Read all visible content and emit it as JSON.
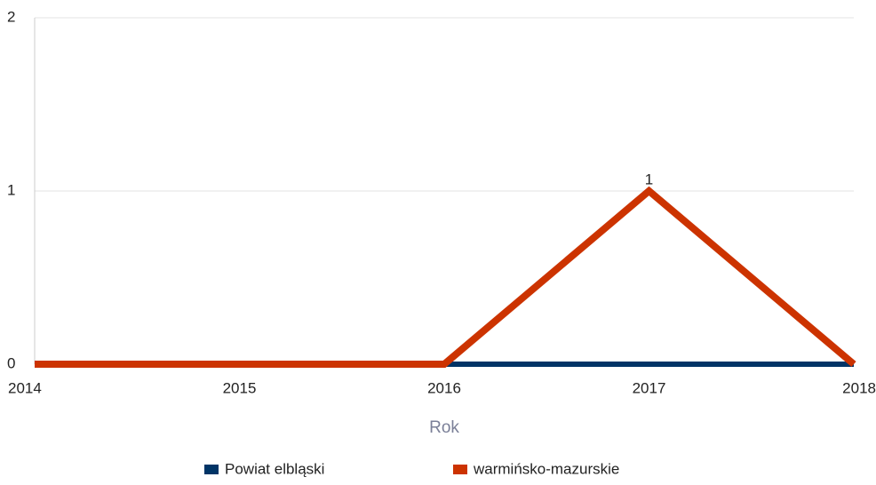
{
  "chart_data": {
    "type": "line",
    "x": [
      2014,
      2015,
      2016,
      2017,
      2018
    ],
    "xlim": [
      2014,
      2018
    ],
    "xticks": [
      2014,
      2015,
      2016,
      2017,
      2018
    ],
    "ylim": [
      0,
      2
    ],
    "yticks": [
      0,
      1,
      2
    ],
    "x_label": "Rok",
    "grid": true,
    "legend": "bottom",
    "series": [
      {
        "name": "Powiat elbląski",
        "color": "#003466",
        "values": [
          0,
          0,
          0,
          0,
          0
        ]
      },
      {
        "name": "warmińsko-mazurskie",
        "color": "#cc3300",
        "values": [
          0,
          0,
          0,
          1,
          0
        ],
        "value_labels": [
          null,
          null,
          null,
          "1",
          null
        ]
      }
    ]
  }
}
